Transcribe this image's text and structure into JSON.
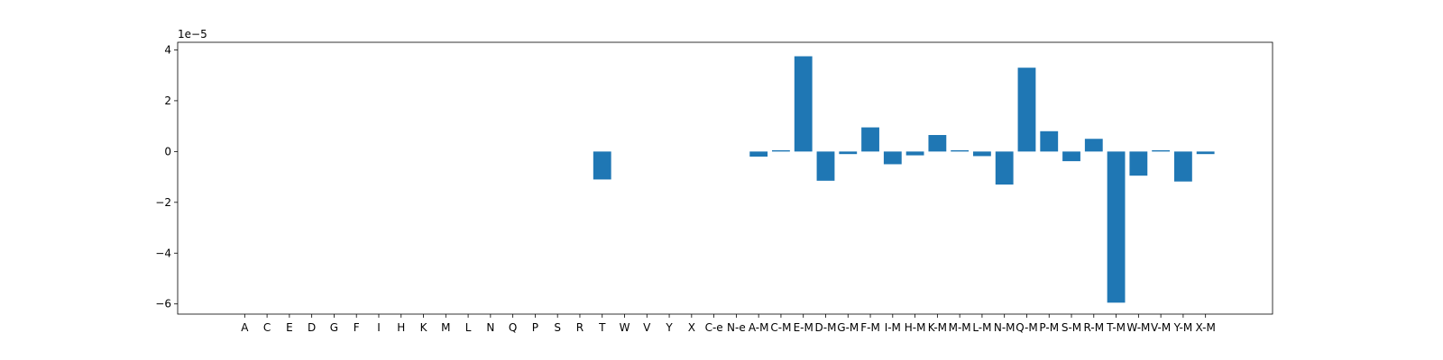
{
  "chart_data": {
    "type": "bar",
    "title": "",
    "xlabel": "",
    "ylabel": "",
    "offset_label": "1e−5",
    "scale": 1e-05,
    "ylim": [
      -6.4,
      4.3
    ],
    "yticks": [
      4,
      2,
      0,
      -2,
      -4,
      -6
    ],
    "ytick_labels": [
      "4",
      "2",
      "0",
      "−2",
      "−4",
      "−6"
    ],
    "grid": false,
    "bar_color": "#1f77b4",
    "categories": [
      "A",
      "C",
      "E",
      "D",
      "G",
      "F",
      "I",
      "H",
      "K",
      "M",
      "L",
      "N",
      "Q",
      "P",
      "S",
      "R",
      "T",
      "W",
      "V",
      "Y",
      "X",
      "C-e",
      "N-e",
      "A-M",
      "C-M",
      "E-M",
      "D-M",
      "G-M",
      "F-M",
      "I-M",
      "H-M",
      "K-M",
      "M-M",
      "L-M",
      "N-M",
      "Q-M",
      "P-M",
      "S-M",
      "R-M",
      "T-M",
      "W-M",
      "V-M",
      "Y-M",
      "X-M"
    ],
    "values": [
      0,
      0,
      0,
      0,
      0,
      0,
      0,
      0,
      0,
      0,
      0,
      0,
      0,
      0,
      0,
      0,
      -1.1,
      0,
      0,
      0,
      0,
      0,
      0,
      -0.2,
      0.05,
      3.75,
      -1.15,
      -0.1,
      0.95,
      -0.5,
      -0.15,
      0.65,
      0.05,
      -0.18,
      -1.3,
      3.3,
      0.8,
      -0.38,
      0.5,
      -5.95,
      -0.95,
      0.05,
      -1.18,
      -0.1
    ]
  }
}
